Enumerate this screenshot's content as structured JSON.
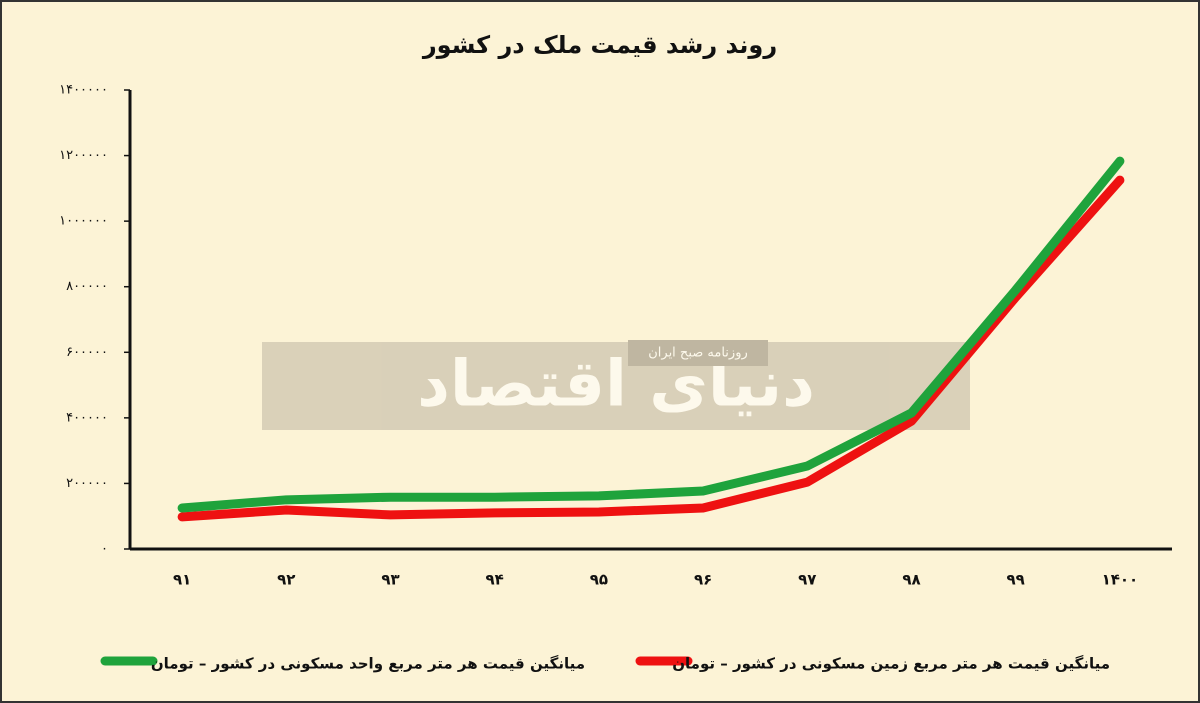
{
  "chart_data": {
    "type": "line",
    "title": "روند رشد قیمت ملک در کشور",
    "watermark": {
      "text": "دنیای اقتصاد",
      "subtitle": "روزنامه صبح ایران"
    },
    "categories": [
      "۹۱",
      "۹۲",
      "۹۳",
      "۹۴",
      "۹۵",
      "۹۶",
      "۹۷",
      "۹۸",
      "۹۹",
      "۱۴۰۰"
    ],
    "series": [
      {
        "name": "میانگین قیمت هر متر مربع زمین مسکونی در کشور – تومان",
        "color": "#ee1111",
        "values": [
          98000,
          119000,
          104000,
          110000,
          113000,
          125000,
          204000,
          390000,
          768000,
          1125000
        ]
      },
      {
        "name": "میانگین قیمت هر متر مربع واحد مسکونی در کشور – تومان",
        "color": "#1fa33c",
        "values": [
          125000,
          150000,
          158000,
          158000,
          162000,
          177000,
          253000,
          415000,
          790000,
          1183000
        ]
      }
    ],
    "ylim": [
      0,
      1400000
    ],
    "yticks": [
      {
        "value": 0,
        "label": "٠"
      },
      {
        "value": 200000,
        "label": "۲۰۰۰۰۰"
      },
      {
        "value": 400000,
        "label": "۴۰۰۰۰۰"
      },
      {
        "value": 600000,
        "label": "۶۰۰۰۰۰"
      },
      {
        "value": 800000,
        "label": "۸۰۰۰۰۰"
      },
      {
        "value": 1000000,
        "label": "۱۰۰۰۰۰۰"
      },
      {
        "value": 1200000,
        "label": "۱۲۰۰۰۰۰"
      },
      {
        "value": 1400000,
        "label": "۱۴۰۰۰۰۰"
      }
    ],
    "grid": false
  }
}
